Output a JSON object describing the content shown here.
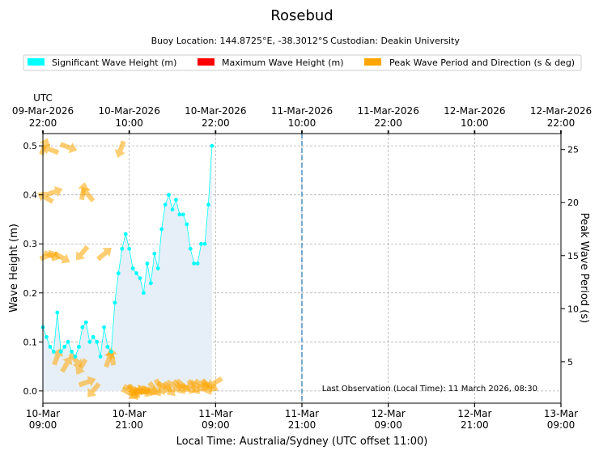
{
  "chart_data": {
    "type": "line",
    "title": "Rosebud",
    "subtitle_location": "Buoy Location: 144.8725°E, -38.3012°S",
    "subtitle_custodian": "Custodian: Deakin University",
    "legend": [
      {
        "label": "Significant Wave Height (m)",
        "color": "#00ffff"
      },
      {
        "label": "Maximum Wave Height (m)",
        "color": "#ff0000"
      },
      {
        "label": "Peak Wave Period and Direction (s & deg)",
        "color": "#ffa500"
      }
    ],
    "xlabel": "Local Time: Australia/Sydney (UTC offset 11:00)",
    "ylabel": "Wave Height (m)",
    "ylabel_right": "Peak Wave Period (s)",
    "top_axis_title": "UTC",
    "x_range_hours": [
      0,
      72
    ],
    "ylim": [
      -0.025,
      0.525
    ],
    "ylim_right": [
      1.1,
      26.5
    ],
    "grid": true,
    "x_ticks": [
      {
        "h": 0,
        "date": "10-Mar",
        "time": "09:00"
      },
      {
        "h": 12,
        "date": "10-Mar",
        "time": "21:00"
      },
      {
        "h": 24,
        "date": "11-Mar",
        "time": "09:00"
      },
      {
        "h": 36,
        "date": "11-Mar",
        "time": "21:00"
      },
      {
        "h": 48,
        "date": "12-Mar",
        "time": "09:00"
      },
      {
        "h": 60,
        "date": "12-Mar",
        "time": "21:00"
      },
      {
        "h": 72,
        "date": "13-Mar",
        "time": "09:00"
      }
    ],
    "top_ticks": [
      {
        "h": 0,
        "date": "09-Mar-2026",
        "time": "22:00"
      },
      {
        "h": 12,
        "date": "10-Mar-2026",
        "time": "10:00"
      },
      {
        "h": 24,
        "date": "10-Mar-2026",
        "time": "22:00"
      },
      {
        "h": 36,
        "date": "11-Mar-2026",
        "time": "10:00"
      },
      {
        "h": 48,
        "date": "11-Mar-2026",
        "time": "22:00"
      },
      {
        "h": 60,
        "date": "12-Mar-2026",
        "time": "10:00"
      },
      {
        "h": 72,
        "date": "12-Mar-2026",
        "time": "22:00"
      }
    ],
    "y_ticks": [
      "0.0",
      "0.1",
      "0.2",
      "0.3",
      "0.4",
      "0.5"
    ],
    "y_right_ticks": [
      "5",
      "10",
      "15",
      "20",
      "25"
    ],
    "now_line_hours": 36,
    "annotation": "Last Observation (Local Time): 11 March 2026, 08:30",
    "significant_wave_height": {
      "hours": [
        0,
        0.5,
        1,
        1.5,
        2,
        2.5,
        3,
        3.5,
        4,
        4.5,
        5,
        5.5,
        6,
        6.5,
        7,
        7.5,
        8,
        8.5,
        9,
        9.5,
        10,
        10.5,
        11,
        11.5,
        12,
        12.5,
        13,
        13.5,
        14,
        14.5,
        15,
        15.5,
        16,
        16.5,
        17,
        17.5,
        18,
        18.5,
        19,
        19.5,
        20,
        20.5,
        21,
        21.5,
        22,
        22.5,
        23,
        23.5
      ],
      "values": [
        0.13,
        0.11,
        0.09,
        0.08,
        0.16,
        0.08,
        0.09,
        0.1,
        0.08,
        0.07,
        0.09,
        0.13,
        0.14,
        0.1,
        0.11,
        0.1,
        0.07,
        0.13,
        0.09,
        0.08,
        0.18,
        0.24,
        0.29,
        0.32,
        0.29,
        0.25,
        0.24,
        0.23,
        0.2,
        0.26,
        0.22,
        0.28,
        0.25,
        0.33,
        0.38,
        0.4,
        0.37,
        0.39,
        0.36,
        0.36,
        0.34,
        0.29,
        0.26,
        0.26,
        0.3,
        0.3,
        0.38,
        0.5
      ]
    },
    "peak_period_direction": {
      "hours": [
        0.2,
        1.0,
        1.6,
        0.3,
        1.3,
        2.7,
        0.8,
        2.0,
        3.3,
        4.6,
        5.3,
        5.6,
        3.6,
        5.4,
        6.2,
        9.2,
        8.6,
        6.2,
        7.0,
        9.6,
        12.3,
        12.6,
        13.2,
        13.9,
        10.8,
        12.1,
        12.9,
        13.6,
        14.3,
        14.9,
        15.6,
        16.3,
        17.0,
        17.6,
        18.3,
        19.0,
        19.6,
        20.3,
        21.0,
        21.6,
        22.2,
        22.8,
        23.3,
        23.8
      ],
      "periods": [
        25.3,
        25.0,
        21.0,
        20.5,
        15.0,
        14.8,
        15.0,
        5.5,
        4.8,
        5.1,
        4.5,
        21.1,
        25.2,
        15.2,
        3.1,
        5.3,
        15.2,
        20.8,
        2.3,
        5.5,
        2.3,
        2.1,
        2.3,
        2.2,
        25.0,
        2.0,
        2.4,
        2.1,
        2.2,
        2.3,
        2.4,
        2.6,
        2.6,
        2.4,
        2.7,
        2.6,
        2.7,
        2.5,
        2.6,
        2.7,
        2.8,
        2.6,
        2.7,
        3.0
      ],
      "directions": [
        200,
        110,
        250,
        120,
        290,
        300,
        250,
        200,
        210,
        320,
        30,
        190,
        290,
        40,
        250,
        200,
        230,
        140,
        40,
        170,
        300,
        330,
        250,
        270,
        20,
        300,
        290,
        80,
        280,
        290,
        320,
        330,
        300,
        320,
        300,
        320,
        310,
        290,
        320,
        300,
        300,
        330,
        300,
        60
      ]
    }
  }
}
